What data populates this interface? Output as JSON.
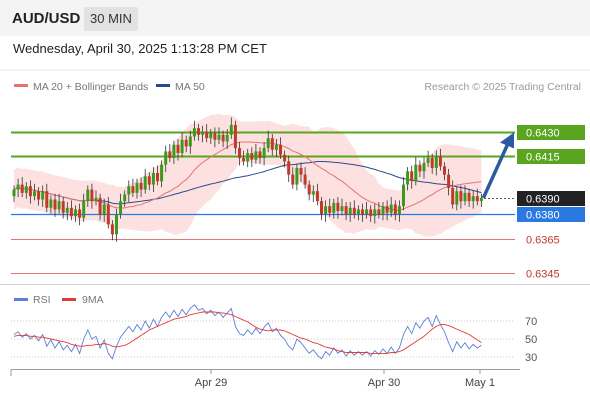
{
  "header": {
    "symbol": "AUD/USD",
    "timeframe": "30 MIN"
  },
  "datetime": "Wednesday, April 30, 2025 1:13:28 PM CET",
  "legend": {
    "ma20_label": "MA 20 + Bollinger Bands",
    "ma50_label": "MA 50"
  },
  "credit": "Research © 2025 Trading Central",
  "colors": {
    "bullish": "#3a9a1a",
    "bearish": "#c0392b",
    "candle_wick": "#333333",
    "ma20": "#e57373",
    "ma50": "#2b4a8a",
    "bollinger_fill": "#fde1e1",
    "resistance": "#5aa51f",
    "pivot": "#2979e0",
    "support": "#e07a7a",
    "current_price": "#222222",
    "forecast_arrow": "#2c5aa0",
    "rsi": "#5c7fd8",
    "rsi_ma": "#e53935"
  },
  "chart_data": [
    {
      "type": "candlestick",
      "x_ticks": [
        "Apr 29",
        "Apr 30",
        "May 1"
      ],
      "price_levels": [
        {
          "value": 0.643,
          "label": "0.6430",
          "kind": "resistance"
        },
        {
          "value": 0.6415,
          "label": "0.6415",
          "kind": "resistance"
        },
        {
          "value": 0.639,
          "label": "0.6390",
          "kind": "current-price"
        },
        {
          "value": 0.638,
          "label": "0.6380",
          "kind": "pivot"
        },
        {
          "value": 0.6365,
          "label": "0.6365",
          "kind": "support"
        },
        {
          "value": 0.6345,
          "label": "0.6345",
          "kind": "support"
        }
      ],
      "close": [
        0.6395,
        0.6398,
        0.6393,
        0.6397,
        0.6391,
        0.6394,
        0.6389,
        0.6394,
        0.6384,
        0.6389,
        0.6383,
        0.6388,
        0.6381,
        0.6384,
        0.6379,
        0.6383,
        0.6378,
        0.6388,
        0.6395,
        0.6388,
        0.639,
        0.638,
        0.6386,
        0.6374,
        0.6368,
        0.638,
        0.6388,
        0.6392,
        0.6397,
        0.6393,
        0.6399,
        0.6395,
        0.6403,
        0.6398,
        0.6405,
        0.64,
        0.641,
        0.6418,
        0.6414,
        0.6422,
        0.6417,
        0.6425,
        0.6421,
        0.6427,
        0.6432,
        0.6428,
        0.643,
        0.6426,
        0.6429,
        0.6425,
        0.6428,
        0.6424,
        0.6428,
        0.6434,
        0.642,
        0.6414,
        0.6412,
        0.6417,
        0.6413,
        0.6418,
        0.6414,
        0.642,
        0.6426,
        0.6419,
        0.6422,
        0.6416,
        0.6412,
        0.6404,
        0.6398,
        0.6408,
        0.6404,
        0.6398,
        0.6392,
        0.6394,
        0.6388,
        0.638,
        0.6385,
        0.6381,
        0.6387,
        0.6382,
        0.6385,
        0.638,
        0.6384,
        0.638,
        0.6383,
        0.638,
        0.6383,
        0.6379,
        0.6383,
        0.638,
        0.6385,
        0.6381,
        0.6386,
        0.638,
        0.6385,
        0.6398,
        0.6406,
        0.64,
        0.641,
        0.6406,
        0.6411,
        0.6414,
        0.6408,
        0.6415,
        0.6409,
        0.6404,
        0.6396,
        0.6386,
        0.6394,
        0.6388,
        0.6393,
        0.6388,
        0.6391,
        0.6388,
        0.639
      ],
      "moving_averages": [
        {
          "name": "MA 20 + Bollinger Bands"
        },
        {
          "name": "MA 50"
        }
      ],
      "forecast": {
        "from": 0.639,
        "to": 0.643,
        "direction": "up"
      }
    },
    {
      "type": "line",
      "series": [
        {
          "name": "RSI",
          "values": [
            55,
            58,
            52,
            56,
            50,
            54,
            48,
            55,
            42,
            49,
            40,
            47,
            38,
            43,
            36,
            44,
            34,
            50,
            60,
            50,
            53,
            40,
            49,
            34,
            28,
            42,
            52,
            58,
            64,
            58,
            66,
            60,
            70,
            62,
            72,
            64,
            74,
            80,
            74,
            82,
            75,
            83,
            77,
            84,
            88,
            82,
            84,
            78,
            82,
            76,
            80,
            74,
            79,
            84,
            64,
            56,
            54,
            60,
            55,
            62,
            56,
            63,
            68,
            58,
            62,
            54,
            50,
            42,
            38,
            50,
            46,
            40,
            34,
            38,
            32,
            28,
            36,
            32,
            40,
            34,
            38,
            31,
            37,
            32,
            36,
            32,
            36,
            31,
            37,
            33,
            39,
            34,
            41,
            34,
            40,
            55,
            64,
            56,
            68,
            62,
            70,
            74,
            64,
            76,
            66,
            58,
            46,
            36,
            47,
            40,
            46,
            39,
            44,
            40,
            43
          ],
          "color": "#5c7fd8"
        },
        {
          "name": "9MA",
          "values": [
            53,
            54,
            54,
            54,
            53,
            53,
            52,
            52,
            51,
            50,
            49,
            48,
            47,
            46,
            44,
            43,
            42,
            42,
            43,
            43,
            44,
            44,
            45,
            44,
            42,
            41,
            42,
            43,
            45,
            48,
            51,
            54,
            57,
            60,
            62,
            64,
            66,
            68,
            70,
            72,
            73,
            74,
            75,
            77,
            78,
            79,
            80,
            80,
            80,
            80,
            79,
            79,
            78,
            77,
            75,
            73,
            71,
            69,
            66,
            63,
            61,
            60,
            59,
            60,
            60,
            60,
            59,
            57,
            55,
            53,
            51,
            50,
            48,
            46,
            45,
            43,
            41,
            40,
            39,
            37,
            36,
            35,
            35,
            35,
            35,
            35,
            35,
            34,
            34,
            34,
            34,
            34,
            35,
            35,
            36,
            38,
            41,
            44,
            47,
            50,
            53,
            57,
            61,
            64,
            66,
            66,
            65,
            63,
            61,
            59,
            57,
            55,
            52,
            49,
            46
          ],
          "color": "#e53935"
        }
      ],
      "y_ticks": [
        70,
        50,
        30
      ],
      "legend": [
        "RSI",
        "9MA"
      ]
    }
  ]
}
